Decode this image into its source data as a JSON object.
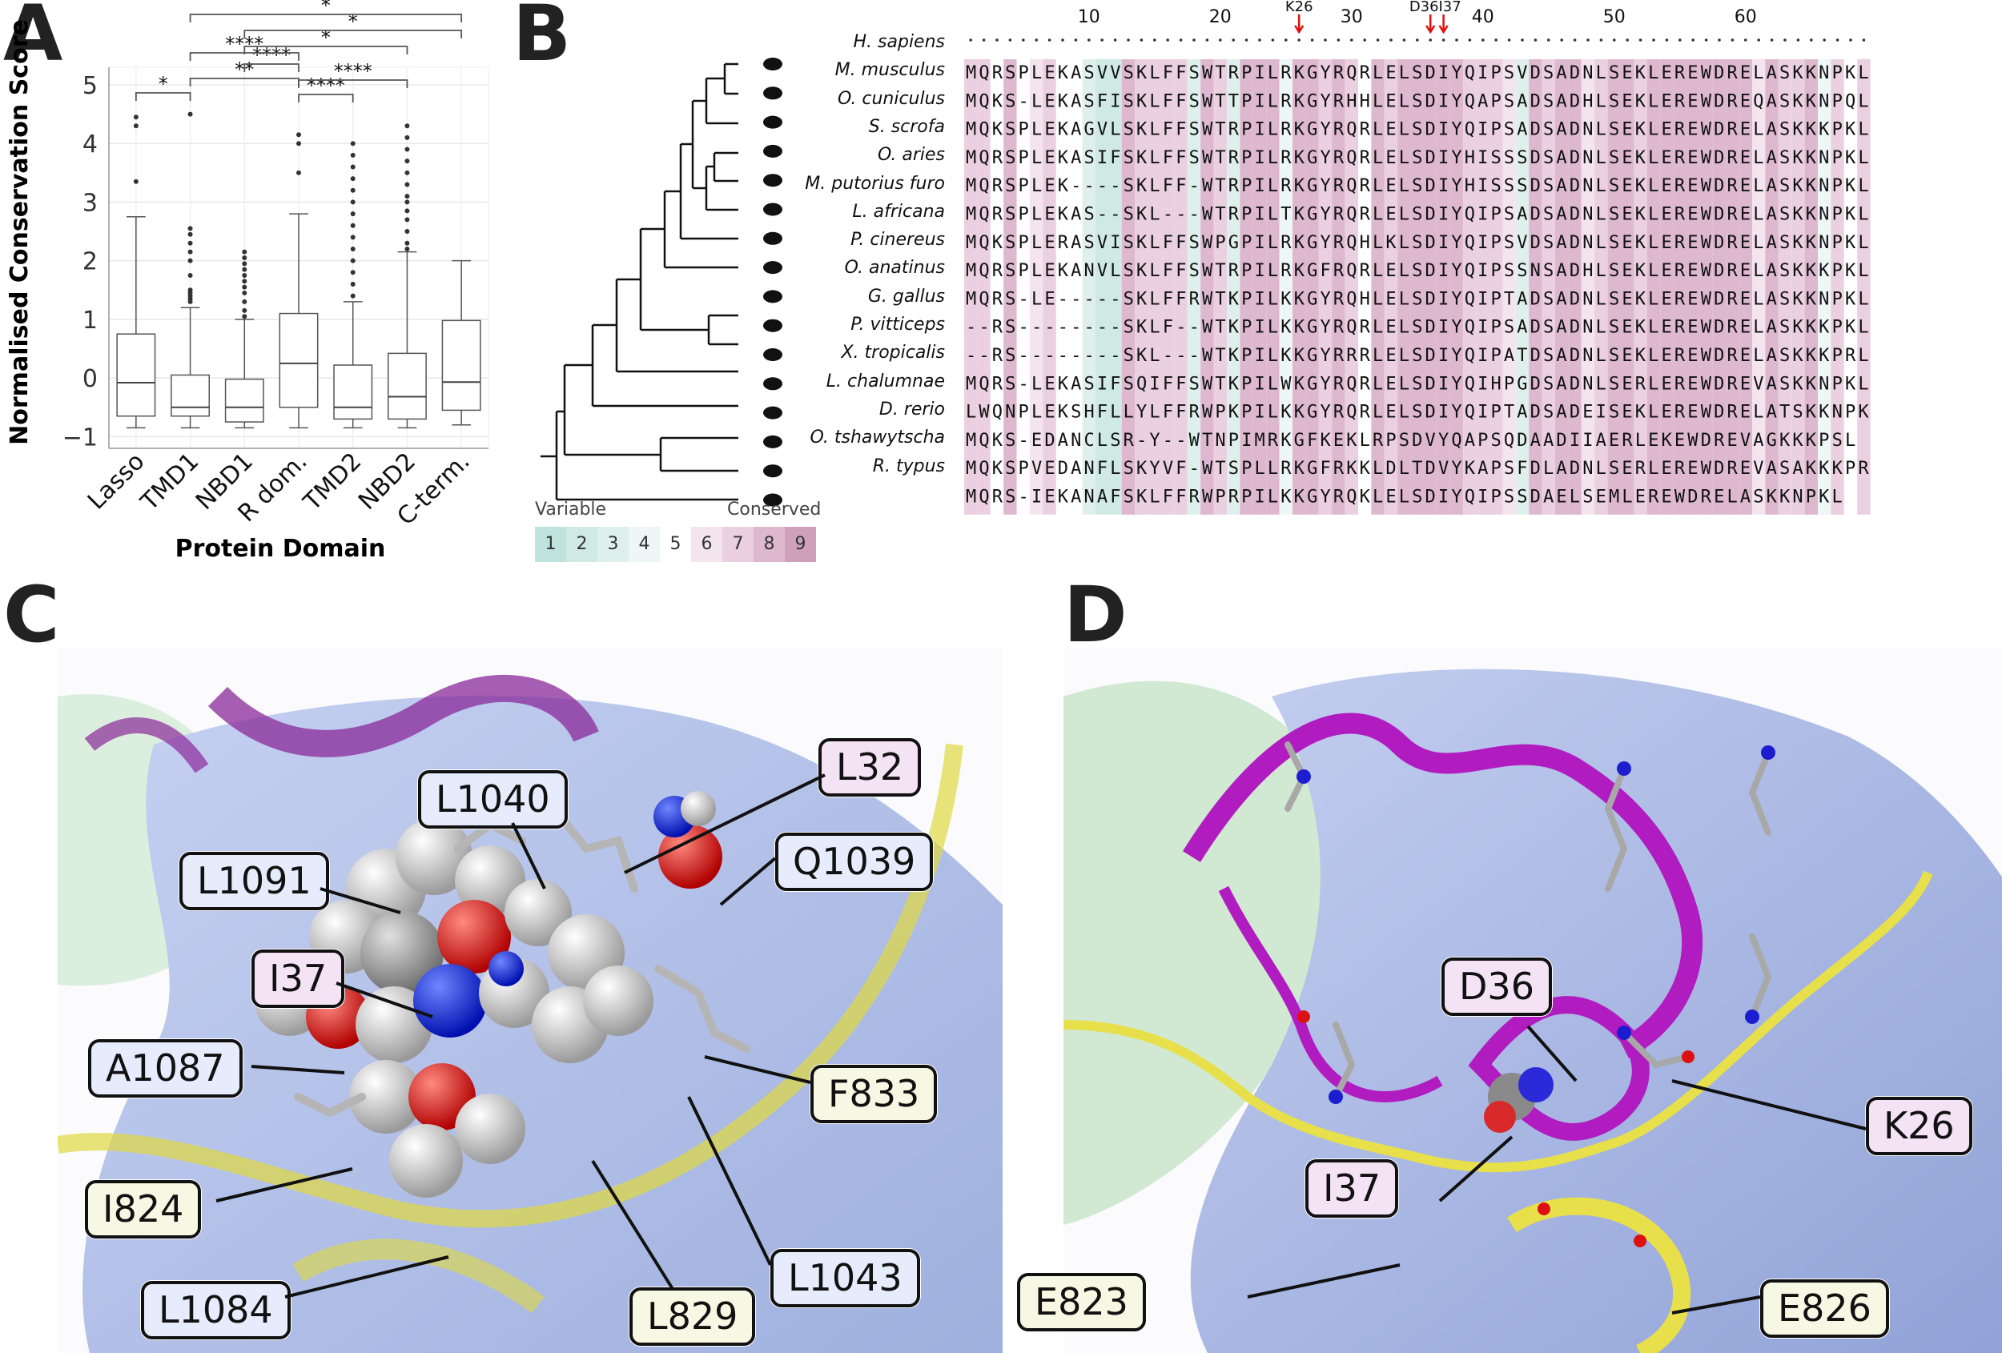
{
  "panels": {
    "a": "A",
    "b": "B",
    "c": "C",
    "d": "D"
  },
  "chart_data": {
    "type": "box",
    "xlabel": "Protein Domain",
    "ylabel": "Normalised Conservation Score",
    "ylim": [
      -1.2,
      5.3
    ],
    "yticks": [
      -1,
      0,
      1,
      2,
      3,
      4,
      5
    ],
    "categories": [
      "Lasso",
      "TMD1",
      "NBD1",
      "R dom.",
      "TMD2",
      "NBD2",
      "C-term."
    ],
    "boxes": [
      {
        "low": -0.85,
        "q1": -0.65,
        "median": -0.08,
        "q3": 0.75,
        "high": 2.75,
        "outliers": [
          3.35,
          4.3,
          4.45
        ]
      },
      {
        "low": -0.85,
        "q1": -0.65,
        "median": -0.5,
        "q3": 0.05,
        "high": 1.2,
        "outliers": [
          1.3,
          1.35,
          1.4,
          1.45,
          1.5,
          1.75,
          2.0,
          2.15,
          2.3,
          2.45,
          2.55,
          4.5
        ]
      },
      {
        "low": -0.85,
        "q1": -0.75,
        "median": -0.5,
        "q3": -0.02,
        "high": 1.0,
        "outliers": [
          1.05,
          1.15,
          1.3,
          1.45,
          1.55,
          1.65,
          1.75,
          1.85,
          1.95,
          2.05,
          2.15
        ]
      },
      {
        "low": -0.85,
        "q1": -0.5,
        "median": 0.25,
        "q3": 1.1,
        "high": 2.8,
        "outliers": [
          3.5,
          4.0,
          4.15
        ]
      },
      {
        "low": -0.85,
        "q1": -0.7,
        "median": -0.5,
        "q3": 0.22,
        "high": 1.3,
        "outliers": [
          1.4,
          1.6,
          1.8,
          2.0,
          2.2,
          2.4,
          2.6,
          2.8,
          3.0,
          3.2,
          3.4,
          3.6,
          3.8,
          4.0
        ]
      },
      {
        "low": -0.85,
        "q1": -0.7,
        "median": -0.32,
        "q3": 0.42,
        "high": 2.15,
        "outliers": [
          2.2,
          2.3,
          2.5,
          2.7,
          2.85,
          3.0,
          3.1,
          3.3,
          3.5,
          3.7,
          3.9,
          4.1,
          4.3
        ]
      },
      {
        "low": -0.8,
        "q1": -0.55,
        "median": -0.07,
        "q3": 0.98,
        "high": 2.0,
        "outliers": []
      }
    ],
    "significance": [
      {
        "from": 0,
        "to": 1,
        "label": "*"
      },
      {
        "from": 1,
        "to": 3,
        "label": "**"
      },
      {
        "from": 3,
        "to": 4,
        "label": "****"
      },
      {
        "from": 3,
        "to": 5,
        "label": "****"
      },
      {
        "from": 2,
        "to": 3,
        "label": "****"
      },
      {
        "from": 1,
        "to": 3,
        "label": "****"
      },
      {
        "from": 2,
        "to": 5,
        "label": "*"
      },
      {
        "from": 2,
        "to": 6,
        "label": "*"
      },
      {
        "from": 1,
        "to": 6,
        "label": "*"
      }
    ]
  },
  "alignment": {
    "ruler_numbers": [
      "10",
      "20",
      "30",
      "40",
      "50",
      "60"
    ],
    "markers": [
      "K26",
      "D36",
      "I37"
    ],
    "species": [
      {
        "name": "H. sapiens",
        "seq": "MQRSPLEKASVVSKLFFSWTRPILRKGYRQRLELSDIYQIPSVDSADNLSEKLEREWDRELASKKNPKL"
      },
      {
        "name": "M. musculus",
        "seq": "MQKS-LEKASFISKLFFSWTTPILRKGYRHHLELSDIYQAPSADSADHLSEKLEREWDREQASKKNPQL"
      },
      {
        "name": "O. cuniculus",
        "seq": "MQKSPLEKAGVLSKLFFSWTRPILRKGYRQRLELSDIYQIPSADSADNLSEKLEREWDRELASKKKPKL"
      },
      {
        "name": "S. scrofa",
        "seq": "MQRSPLEKASIFSKLFFSWTRPILRKGYRQRLELSDIYHISSSDSADNLSEKLEREWDRELASKKNPKL"
      },
      {
        "name": "O. aries",
        "seq": "MQRSPLEK----SKLFF-WTRPILRKGYRQRLELSDIYHISSSDSADNLSEKLEREWDRELASKKNPKL"
      },
      {
        "name": "M. putorius furo",
        "seq": "MQRSPLEKAS--SKL---WTRPILTKGYRQRLELSDIYQIPSADSADNLSEKLEREWDRELASKKNPKL"
      },
      {
        "name": "L. africana",
        "seq": "MQKSPLERASVISKLFFSWPGPILRKGYRQHLKLSDIYQIPSVDSADNLSEKLEREWDRELASKKNPKL"
      },
      {
        "name": "P. cinereus",
        "seq": "MQRSPLEKANVLSKLFFSWTRPILRKGFRQRLELSDIYQIPSSNSADHLSEKLEREWDRELASKKKPKL"
      },
      {
        "name": "O. anatinus",
        "seq": "MQRS-LE-----SKLFFRWTKPILKKGYRQHLELSDIYQIPTADSADNLSEKLEREWDRELASKKNPKL"
      },
      {
        "name": "G. gallus",
        "seq": "--RS--------SKLF--WTKPILKKGYRQRLELSDIYQIPSADSADNLSEKLEREWDRELASKKKPKL"
      },
      {
        "name": "P. vitticeps",
        "seq": "--RS--------SKL---WTKPILKKGYRRRLELSDIYQIPATDSADNLSEKLEREWDRELASKKKPRL"
      },
      {
        "name": "X. tropicalis",
        "seq": "MQRS-LEKASIFSQIFFSWTKPILWKGYRQRLELSDIYQIHPGDSADNLSERLEREWDREVASKKNPKL"
      },
      {
        "name": "L. chalumnae",
        "seq": "LWQNPLEKSHFLLYLFFRWPKPILKKGYRQRLELSDIYQIPTADSADEISEKLEREWDRELATSKKNPK"
      },
      {
        "name": "D. rerio",
        "seq": "MQKS-EDANCLSR-Y--WTNPIMRKGFKEKLRPSDVYQAPSQDAADIIAERLEKEWDREVAGKKKPSL"
      },
      {
        "name": "O. tshawytscha",
        "seq": "MQKSPVEDANFLSKYVF-WTSPLLRKGFRKKLDLTDVYKAPSFDLADNLSERLEREWDREVASAKKKPR"
      },
      {
        "name": "R. typus",
        "seq": "MQRS-IEKANAFSKLFFRWPRPILKKGYRQKLELSDIYQIPSSDAELSEMLEREWDRELASKKNPKL"
      }
    ],
    "legend_variable": "Variable",
    "legend_conserved": "Conserved",
    "legend_scale": [
      "1",
      "2",
      "3",
      "4",
      "5",
      "6",
      "7",
      "8",
      "9"
    ],
    "legend_colors": [
      "#bfe3dd",
      "#cfe9e4",
      "#dff0ec",
      "#eef7f5",
      "#ffffff",
      "#f4e4ee",
      "#ead0e0",
      "#ddb8cf",
      "#cfa0bc"
    ]
  },
  "labels_c": [
    "L1040",
    "L32",
    "L1091",
    "Q1039",
    "I37",
    "A1087",
    "F833",
    "I824",
    "L1043",
    "L1084",
    "L829"
  ],
  "labels_d": [
    "D36",
    "K26",
    "I37",
    "E823",
    "E826"
  ]
}
